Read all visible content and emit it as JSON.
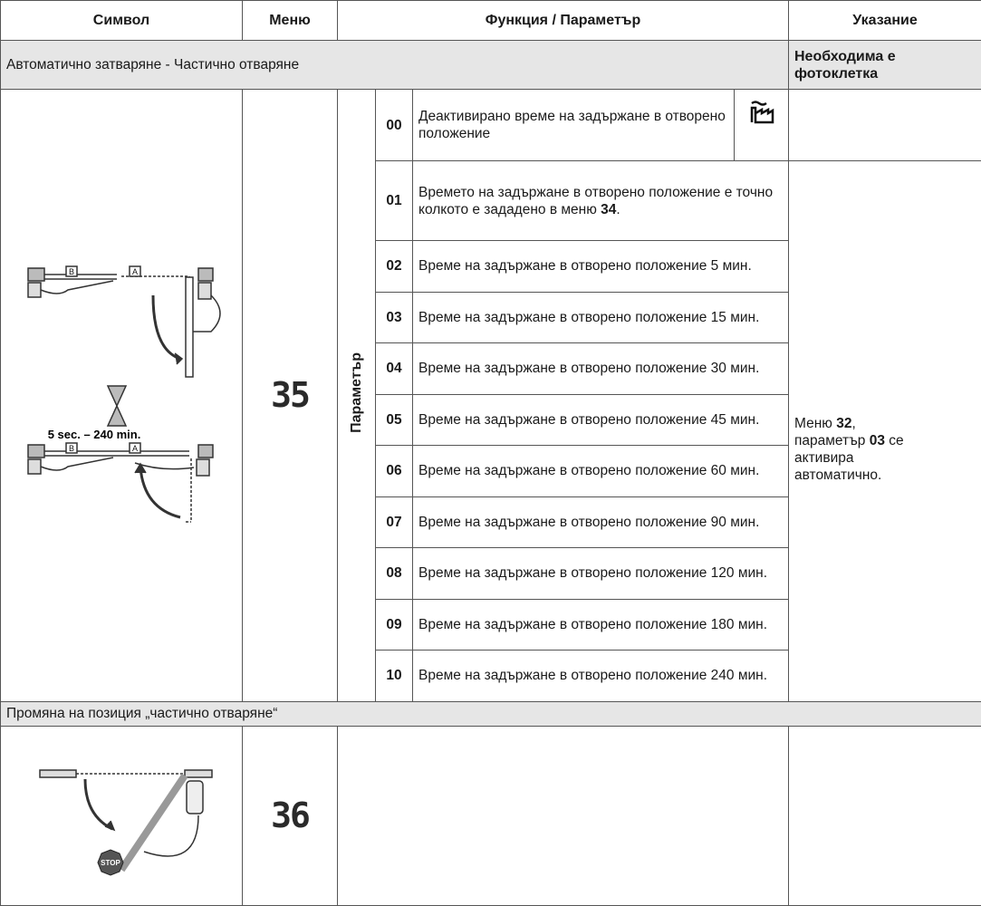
{
  "header": {
    "symbol": "Символ",
    "menu": "Меню",
    "function": "Функция / Параметър",
    "note": "Указание"
  },
  "sections": [
    {
      "title": "Автоматично затваряне - Частично отваряне",
      "title_note": "Необходима е фотоклетка",
      "symbol": {
        "label_b": "B",
        "label_a": "A",
        "time": "5 sec. – 240 min."
      },
      "menu": "35",
      "parameter_label": "Параметър",
      "rows": [
        {
          "code": "00",
          "text": "Деактивирано време на задържане в отворено положение",
          "icon": "factory"
        },
        {
          "code": "01",
          "text": [
            {
              "text": "Времето на задържане в отворено положение е точно колкото е зададено в меню "
            },
            {
              "text": "34",
              "bold": true
            },
            {
              "text": "."
            }
          ]
        },
        {
          "code": "02",
          "text": "Време на задържане в отворено положение 5 мин."
        },
        {
          "code": "03",
          "text": "Време на задържане в отворено положение 15 мин."
        },
        {
          "code": "04",
          "text": "Време на задържане в отворено положение 30 мин."
        },
        {
          "code": "05",
          "text": "Време на задържане в отворено положение 45 мин."
        },
        {
          "code": "06",
          "text": "Време на задържане в отворено положение 60 мин."
        },
        {
          "code": "07",
          "text": "Време на задържане в отворено положение 90 мин."
        },
        {
          "code": "08",
          "text": "Време на задържане в отворено положение 120 мин."
        },
        {
          "code": "09",
          "text": "Време на задържане в отворено положение 180 мин."
        },
        {
          "code": "10",
          "text": "Време на задържане в отворено положение 240 мин."
        }
      ],
      "note": [
        {
          "text": "Меню "
        },
        {
          "text": "32",
          "bold": true
        },
        {
          "text": ", параметър "
        },
        {
          "text": "03",
          "bold": true
        },
        {
          "text": " се активира автоматично."
        }
      ]
    },
    {
      "title": "Промяна на позиция „частично отваряне“",
      "symbol": {
        "stop": "STOP"
      },
      "menu": "36"
    }
  ]
}
